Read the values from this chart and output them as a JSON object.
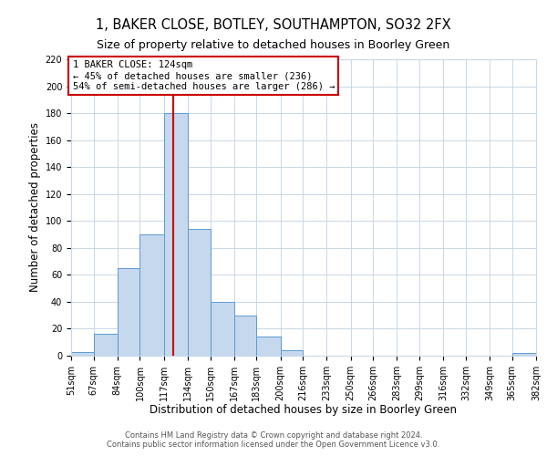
{
  "title": "1, BAKER CLOSE, BOTLEY, SOUTHAMPTON, SO32 2FX",
  "subtitle": "Size of property relative to detached houses in Boorley Green",
  "xlabel": "Distribution of detached houses by size in Boorley Green",
  "ylabel": "Number of detached properties",
  "bin_edges": [
    51,
    67,
    84,
    100,
    117,
    134,
    150,
    167,
    183,
    200,
    216,
    233,
    250,
    266,
    283,
    299,
    316,
    332,
    349,
    365,
    382
  ],
  "bar_heights": [
    3,
    16,
    65,
    90,
    180,
    94,
    40,
    30,
    14,
    4,
    0,
    0,
    0,
    0,
    0,
    0,
    0,
    0,
    0,
    2
  ],
  "bar_color": "#c5d8ed",
  "bar_edge_color": "#5b9bd5",
  "property_line_x": 124,
  "property_line_color": "#cc0000",
  "annotation_title": "1 BAKER CLOSE: 124sqm",
  "annotation_line1": "← 45% of detached houses are smaller (236)",
  "annotation_line2": "54% of semi-detached houses are larger (286) →",
  "annotation_box_color": "#cc0000",
  "ylim": [
    0,
    220
  ],
  "yticks": [
    0,
    20,
    40,
    60,
    80,
    100,
    120,
    140,
    160,
    180,
    200,
    220
  ],
  "tick_labels": [
    "51sqm",
    "67sqm",
    "84sqm",
    "100sqm",
    "117sqm",
    "134sqm",
    "150sqm",
    "167sqm",
    "183sqm",
    "200sqm",
    "216sqm",
    "233sqm",
    "250sqm",
    "266sqm",
    "283sqm",
    "299sqm",
    "316sqm",
    "332sqm",
    "349sqm",
    "365sqm",
    "382sqm"
  ],
  "footer1": "Contains HM Land Registry data © Crown copyright and database right 2024.",
  "footer2": "Contains public sector information licensed under the Open Government Licence v3.0.",
  "bg_color": "#ffffff",
  "grid_color": "#c8d8e8",
  "title_fontsize": 10.5,
  "subtitle_fontsize": 9,
  "axis_label_fontsize": 8.5,
  "tick_fontsize": 7,
  "footer_fontsize": 6,
  "ann_fontsize": 7.5
}
